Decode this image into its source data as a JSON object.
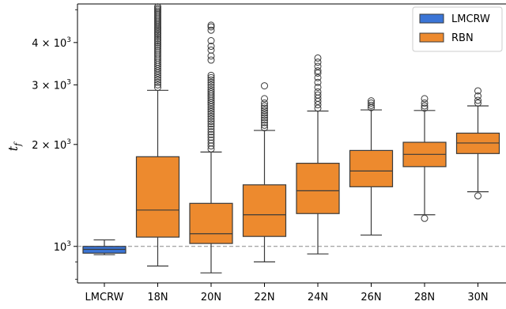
{
  "chart_data": {
    "type": "box",
    "ylabel": "t",
    "ylabel_sub": "f",
    "y_scale": "log",
    "ylim": [
      780,
      5200
    ],
    "y_ticks": [
      {
        "value": 1000,
        "base": "10",
        "exp": "3"
      },
      {
        "value": 2000,
        "base": "2 × 10",
        "exp": "3"
      },
      {
        "value": 3000,
        "base": "3 × 10",
        "exp": "3"
      },
      {
        "value": 4000,
        "base": "4 × 10",
        "exp": "3"
      }
    ],
    "reference_line": 1000,
    "categories": [
      "LMCRW",
      "18N",
      "20N",
      "22N",
      "24N",
      "26N",
      "28N",
      "30N"
    ],
    "legend": {
      "position": "upper right",
      "entries": [
        {
          "label": "LMCRW",
          "color": "#3b75d6"
        },
        {
          "label": "RBN",
          "color": "#ed8a2e"
        }
      ]
    },
    "boxes": [
      {
        "category": "LMCRW",
        "series": "LMCRW",
        "whisker_low": 945,
        "q1": 955,
        "median": 980,
        "q3": 1000,
        "whisker_high": 1045,
        "outliers": []
      },
      {
        "category": "18N",
        "series": "RBN",
        "whisker_low": 875,
        "q1": 1065,
        "median": 1280,
        "q3": 1840,
        "whisker_high": 2890,
        "outliers": [
          2950,
          3000,
          3050,
          3100,
          3150,
          3200,
          3250,
          3300,
          3350,
          3400,
          3450,
          3500,
          3550,
          3600,
          3650,
          3700,
          3750,
          3800,
          3850,
          3900,
          3950,
          4000,
          4050,
          4100,
          4150,
          4200,
          4250,
          4300,
          4350,
          4400,
          4450,
          4500,
          4550,
          4600,
          4650,
          4700,
          4750,
          4800,
          4850,
          4900,
          4950,
          5000,
          5050,
          5100
        ]
      },
      {
        "category": "20N",
        "series": "RBN",
        "whisker_low": 835,
        "q1": 1020,
        "median": 1090,
        "q3": 1340,
        "whisker_high": 1900,
        "outliers": [
          1940,
          1980,
          2020,
          2060,
          2100,
          2140,
          2180,
          2220,
          2260,
          2300,
          2340,
          2380,
          2420,
          2460,
          2500,
          2540,
          2580,
          2620,
          2660,
          2700,
          2740,
          2780,
          2820,
          2860,
          2900,
          2950,
          3000,
          3050,
          3100,
          3150,
          3200,
          3550,
          3650,
          3800,
          3900,
          4050,
          4350,
          4450,
          4500
        ]
      },
      {
        "category": "22N",
        "series": "RBN",
        "whisker_low": 900,
        "q1": 1070,
        "median": 1240,
        "q3": 1520,
        "whisker_high": 2200,
        "outliers": [
          2240,
          2280,
          2320,
          2360,
          2400,
          2440,
          2480,
          2520,
          2560,
          2600,
          2650,
          2730,
          2980
        ]
      },
      {
        "category": "24N",
        "series": "RBN",
        "whisker_low": 950,
        "q1": 1250,
        "median": 1460,
        "q3": 1760,
        "whisker_high": 2510,
        "outliers": [
          2560,
          2620,
          2680,
          2740,
          2800,
          2860,
          2950,
          3050,
          3150,
          3250,
          3300,
          3400,
          3500,
          3600
        ]
      },
      {
        "category": "26N",
        "series": "RBN",
        "whisker_low": 1080,
        "q1": 1500,
        "median": 1670,
        "q3": 1920,
        "whisker_high": 2530,
        "outliers": [
          2570,
          2610,
          2650,
          2690
        ]
      },
      {
        "category": "28N",
        "series": "RBN",
        "whisker_low": 1240,
        "q1": 1720,
        "median": 1870,
        "q3": 2030,
        "whisker_high": 2520,
        "outliers": [
          1210,
          2560,
          2600,
          2650,
          2730
        ]
      },
      {
        "category": "30N",
        "series": "RBN",
        "whisker_low": 1450,
        "q1": 1880,
        "median": 2020,
        "q3": 2160,
        "whisker_high": 2600,
        "outliers": [
          1410,
          2650,
          2700,
          2780,
          2880
        ]
      }
    ]
  }
}
